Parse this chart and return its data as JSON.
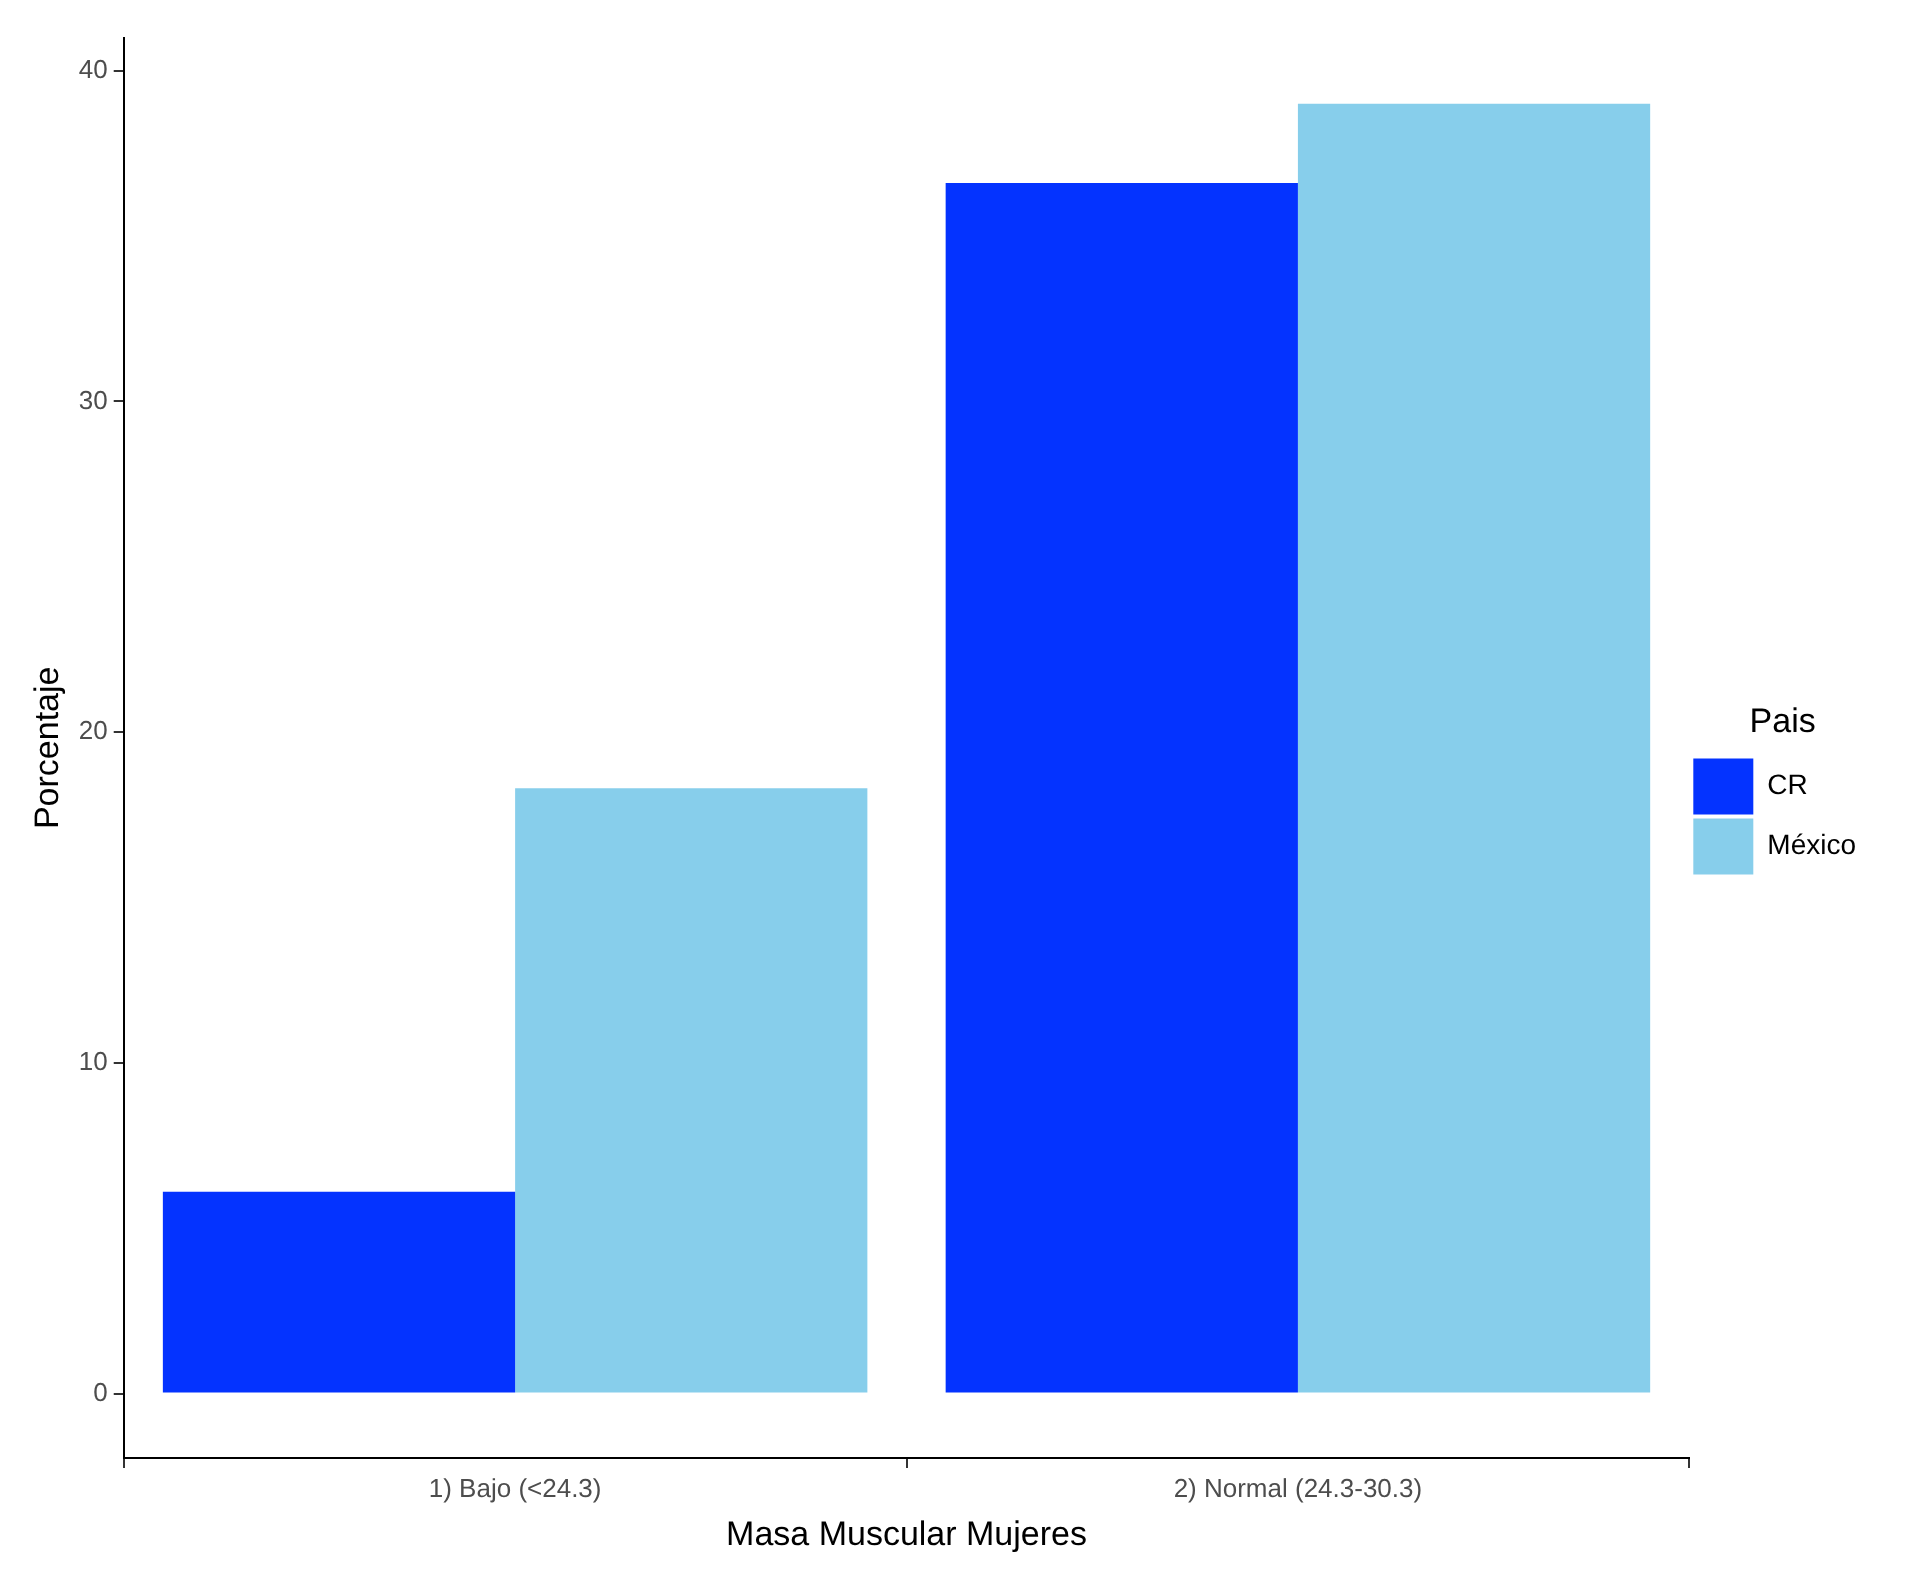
{
  "chart_data": {
    "type": "bar",
    "xlabel": "Masa Muscular Mujeres",
    "ylabel": "Porcentaje",
    "legend_title": "Pais",
    "categories": [
      "1) Bajo (<24.3)",
      "2) Normal (24.3-30.3)"
    ],
    "series": [
      {
        "name": "CR",
        "color": "#0433ff",
        "values": [
          6.1,
          36.6
        ]
      },
      {
        "name": "México",
        "color": "#87ceeb",
        "values": [
          18.3,
          39.0
        ]
      }
    ],
    "ylim": [
      -1.95,
      41.0
    ],
    "yticks": [
      0,
      10,
      20,
      30,
      40
    ],
    "grid": false,
    "legend": "right"
  }
}
